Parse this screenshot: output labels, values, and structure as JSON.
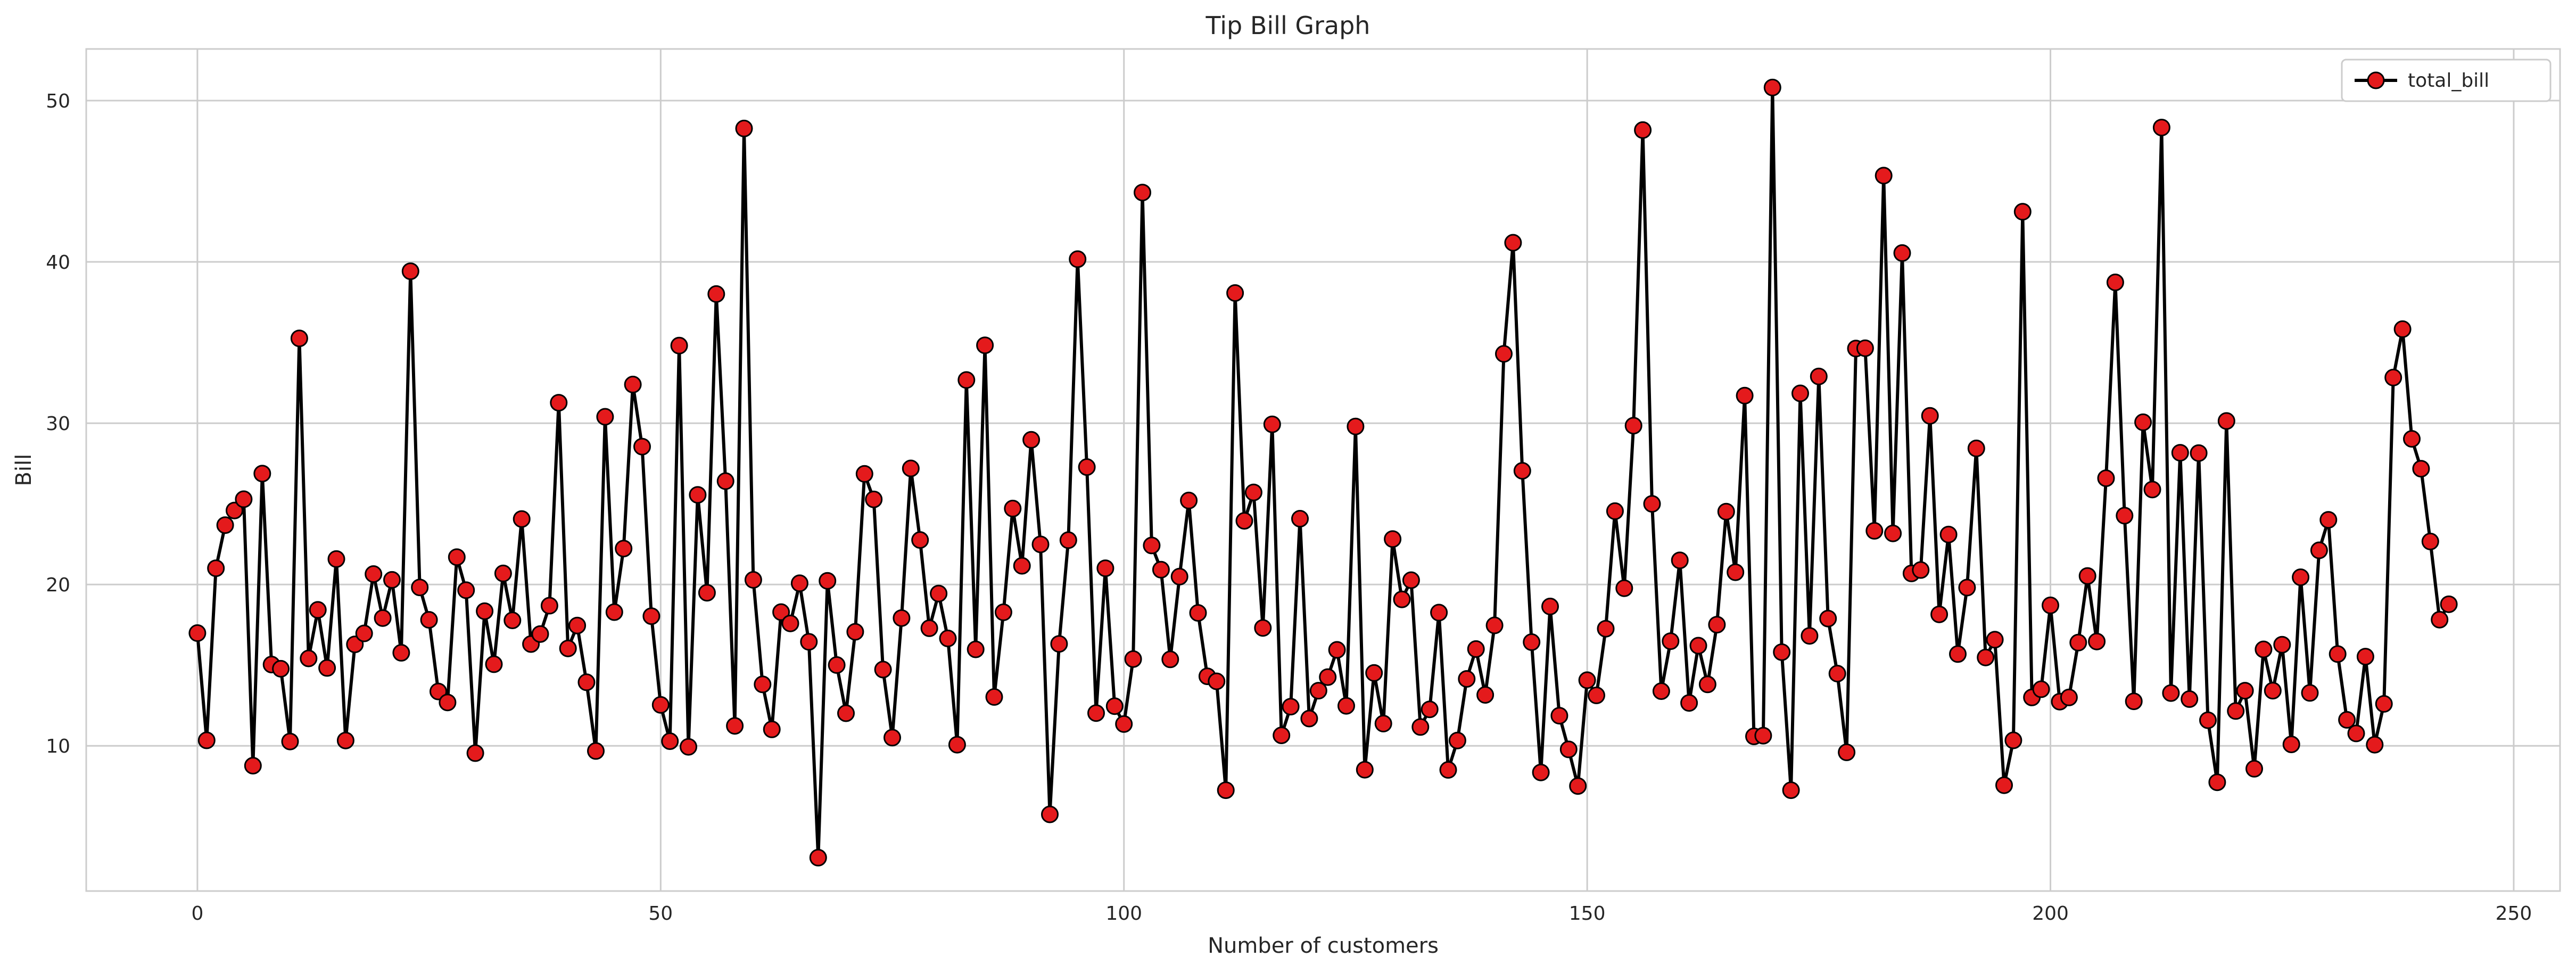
{
  "chart_data": {
    "type": "line",
    "title": "Tip Bill Graph",
    "xlabel": "Number of customers",
    "ylabel": "Bill",
    "xlim": [
      -12,
      255
    ],
    "ylim": [
      1,
      53.2
    ],
    "xticks": [
      0,
      50,
      100,
      150,
      200,
      250
    ],
    "yticks": [
      10,
      20,
      30,
      40,
      50
    ],
    "grid": true,
    "legend_position": "top-right",
    "colors": {
      "line": "#000000",
      "marker_fill": "#e41a1c",
      "marker_edge": "#000000",
      "grid": "#cccccc",
      "axes_edge": "#cccccc"
    },
    "series": [
      {
        "name": "total_bill",
        "y": [
          16.99,
          10.34,
          21.01,
          23.68,
          24.59,
          25.29,
          8.77,
          26.88,
          15.04,
          14.78,
          10.27,
          35.26,
          15.42,
          18.43,
          14.83,
          21.58,
          10.33,
          16.29,
          16.97,
          20.65,
          17.92,
          20.29,
          15.77,
          39.42,
          19.82,
          17.81,
          13.37,
          12.69,
          21.7,
          19.65,
          9.55,
          18.35,
          15.06,
          20.69,
          17.78,
          24.06,
          16.31,
          16.93,
          18.69,
          31.27,
          16.04,
          17.46,
          13.94,
          9.68,
          30.4,
          18.29,
          22.23,
          32.4,
          28.55,
          18.04,
          12.54,
          10.29,
          34.81,
          9.94,
          25.56,
          19.49,
          38.01,
          26.41,
          11.24,
          48.27,
          20.29,
          13.81,
          11.02,
          18.29,
          17.59,
          20.08,
          16.45,
          3.07,
          20.23,
          15.01,
          12.02,
          17.07,
          26.86,
          25.28,
          14.73,
          10.51,
          17.92,
          27.2,
          22.76,
          17.29,
          19.44,
          16.66,
          10.07,
          32.68,
          15.98,
          34.83,
          13.03,
          18.28,
          24.71,
          21.16,
          28.97,
          22.49,
          5.75,
          16.32,
          22.75,
          40.17,
          27.28,
          12.03,
          21.01,
          12.46,
          11.35,
          15.38,
          44.3,
          22.42,
          20.92,
          15.36,
          20.49,
          25.21,
          18.24,
          14.31,
          14.0,
          7.25,
          38.07,
          23.95,
          25.71,
          17.31,
          29.93,
          10.65,
          12.43,
          24.08,
          11.69,
          13.42,
          14.26,
          15.95,
          12.48,
          29.8,
          8.52,
          14.52,
          11.38,
          22.82,
          19.08,
          20.27,
          11.17,
          12.26,
          18.26,
          8.51,
          10.33,
          14.15,
          16.0,
          13.16,
          17.47,
          34.3,
          41.19,
          27.05,
          16.43,
          8.35,
          18.64,
          11.87,
          9.78,
          7.51,
          14.07,
          13.13,
          17.26,
          24.55,
          19.77,
          29.85,
          48.17,
          25.0,
          13.39,
          16.49,
          21.5,
          12.66,
          16.21,
          13.81,
          17.51,
          24.52,
          20.76,
          31.71,
          10.59,
          10.63,
          50.81,
          15.81,
          7.25,
          31.85,
          16.82,
          32.9,
          17.89,
          14.48,
          9.6,
          34.63,
          34.65,
          23.33,
          45.35,
          23.17,
          40.55,
          20.69,
          20.9,
          30.46,
          18.15,
          23.1,
          15.69,
          19.81,
          28.44,
          15.48,
          16.58,
          7.56,
          10.34,
          43.11,
          13.0,
          13.51,
          18.71,
          12.74,
          13.0,
          16.4,
          20.53,
          16.47,
          26.59,
          38.73,
          24.27,
          12.76,
          30.06,
          25.89,
          48.33,
          13.27,
          28.17,
          12.9,
          28.15,
          11.59,
          7.74,
          30.14,
          12.16,
          13.42,
          8.58,
          15.98,
          13.42,
          16.27,
          10.09,
          20.45,
          13.28,
          22.12,
          24.01,
          15.69,
          11.61,
          10.77,
          15.53,
          10.07,
          12.6,
          32.83,
          35.83,
          29.03,
          27.18,
          22.67,
          17.82,
          18.78
        ]
      }
    ]
  }
}
